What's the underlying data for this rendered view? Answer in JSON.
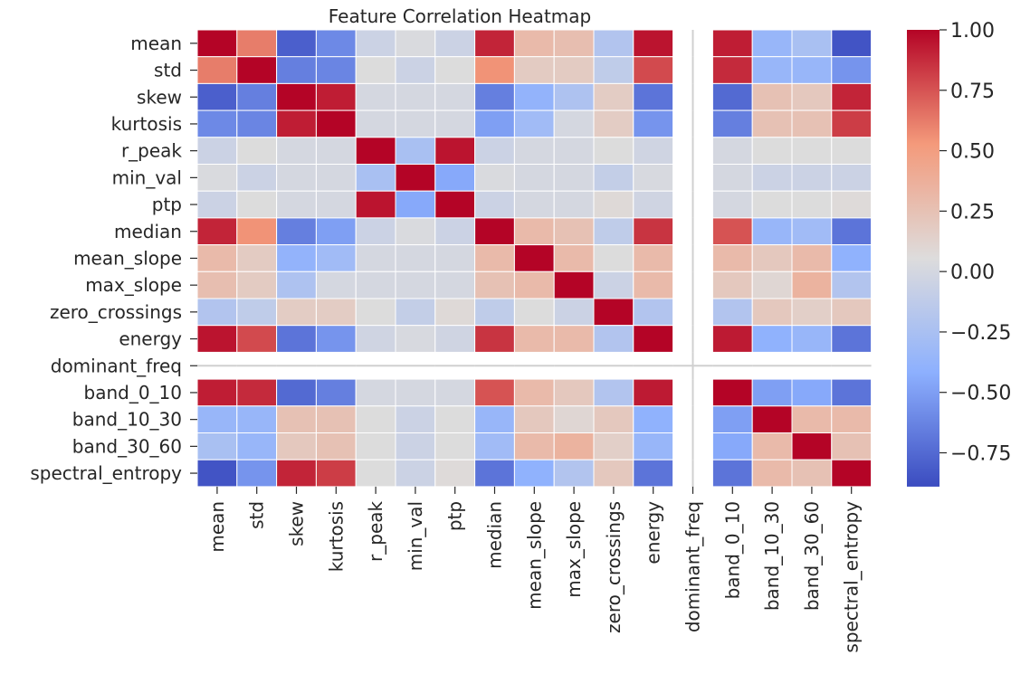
{
  "chart_data": {
    "type": "heatmap",
    "title": "Feature Correlation Heatmap",
    "labels": [
      "mean",
      "std",
      "skew",
      "kurtosis",
      "r_peak",
      "min_val",
      "ptp",
      "median",
      "mean_slope",
      "max_slope",
      "zero_crossings",
      "energy",
      "dominant_freq",
      "band_0_10",
      "band_10_30",
      "band_30_60",
      "spectral_entropy"
    ],
    "matrix": [
      [
        1.0,
        0.62,
        -0.8,
        -0.6,
        -0.05,
        0.03,
        -0.05,
        0.9,
        0.3,
        0.27,
        -0.2,
        0.95,
        null,
        0.92,
        -0.35,
        -0.25,
        -0.85
      ],
      [
        0.62,
        1.0,
        -0.65,
        -0.62,
        0.05,
        -0.05,
        0.05,
        0.55,
        0.18,
        0.18,
        -0.12,
        0.78,
        null,
        0.88,
        -0.35,
        -0.35,
        -0.55
      ],
      [
        -0.8,
        -0.65,
        1.0,
        0.92,
        0.0,
        0.0,
        0.0,
        -0.65,
        -0.38,
        -0.22,
        0.17,
        -0.7,
        null,
        -0.75,
        0.25,
        0.2,
        0.9
      ],
      [
        -0.6,
        -0.62,
        0.92,
        1.0,
        0.0,
        0.0,
        0.0,
        -0.5,
        -0.3,
        0.0,
        0.17,
        -0.55,
        null,
        -0.65,
        0.25,
        0.25,
        0.82
      ],
      [
        -0.05,
        0.05,
        0.0,
        0.0,
        1.0,
        -0.25,
        0.95,
        -0.05,
        0.0,
        0.0,
        0.05,
        -0.03,
        null,
        0.0,
        0.05,
        0.05,
        0.05
      ],
      [
        0.03,
        -0.05,
        0.0,
        0.0,
        -0.25,
        1.0,
        -0.45,
        0.03,
        0.0,
        0.0,
        -0.1,
        0.02,
        null,
        0.0,
        -0.05,
        -0.05,
        -0.05
      ],
      [
        -0.05,
        0.05,
        0.0,
        0.0,
        0.95,
        -0.45,
        1.0,
        -0.05,
        0.0,
        0.0,
        0.08,
        -0.03,
        null,
        0.0,
        0.05,
        0.05,
        0.07
      ],
      [
        0.9,
        0.55,
        -0.65,
        -0.5,
        -0.05,
        0.03,
        -0.05,
        1.0,
        0.3,
        0.25,
        -0.12,
        0.85,
        null,
        0.75,
        -0.35,
        -0.3,
        -0.7
      ],
      [
        0.3,
        0.18,
        -0.38,
        -0.3,
        0.0,
        0.0,
        0.0,
        0.3,
        1.0,
        0.3,
        0.05,
        0.3,
        null,
        0.3,
        0.2,
        0.3,
        -0.4
      ],
      [
        0.27,
        0.18,
        -0.22,
        0.0,
        0.0,
        0.0,
        0.0,
        0.25,
        0.3,
        1.0,
        -0.05,
        0.3,
        null,
        0.2,
        0.1,
        0.35,
        -0.2
      ],
      [
        -0.2,
        -0.12,
        0.17,
        0.17,
        0.05,
        -0.1,
        0.08,
        -0.12,
        0.05,
        -0.05,
        1.0,
        -0.2,
        null,
        -0.2,
        0.2,
        0.15,
        0.2
      ],
      [
        0.95,
        0.78,
        -0.7,
        -0.55,
        -0.03,
        0.02,
        -0.03,
        0.85,
        0.3,
        0.3,
        -0.2,
        1.0,
        null,
        0.93,
        -0.4,
        -0.35,
        -0.7
      ],
      [
        null,
        null,
        null,
        null,
        null,
        null,
        null,
        null,
        null,
        null,
        null,
        null,
        null,
        null,
        null,
        null,
        null
      ],
      [
        0.92,
        0.88,
        -0.75,
        -0.65,
        0.0,
        0.0,
        0.0,
        0.75,
        0.3,
        0.2,
        -0.2,
        0.93,
        null,
        1.0,
        -0.5,
        -0.45,
        -0.7
      ],
      [
        -0.35,
        -0.35,
        0.25,
        0.25,
        0.05,
        -0.05,
        0.05,
        -0.35,
        0.2,
        0.1,
        0.2,
        -0.4,
        null,
        -0.5,
        1.0,
        0.3,
        0.3
      ],
      [
        -0.25,
        -0.35,
        0.2,
        0.25,
        0.05,
        -0.05,
        0.05,
        -0.3,
        0.3,
        0.35,
        0.15,
        -0.35,
        null,
        -0.45,
        0.3,
        1.0,
        0.25
      ],
      [
        -0.85,
        -0.55,
        0.9,
        0.82,
        0.05,
        -0.05,
        0.07,
        -0.7,
        -0.4,
        -0.2,
        0.2,
        -0.7,
        null,
        -0.7,
        0.3,
        0.25,
        1.0
      ]
    ],
    "vmin": -0.89,
    "vmax": 1.0,
    "colormap": "coolwarm",
    "colorbar_ticks": [
      1.0,
      0.75,
      0.5,
      0.25,
      0.0,
      -0.25,
      -0.5,
      -0.75
    ],
    "colorbar_tick_labels": [
      "1.00",
      "0.75",
      "0.50",
      "0.25",
      "0.00",
      "−0.25",
      "−0.50",
      "−0.75"
    ],
    "grid": true,
    "legend": "right"
  }
}
